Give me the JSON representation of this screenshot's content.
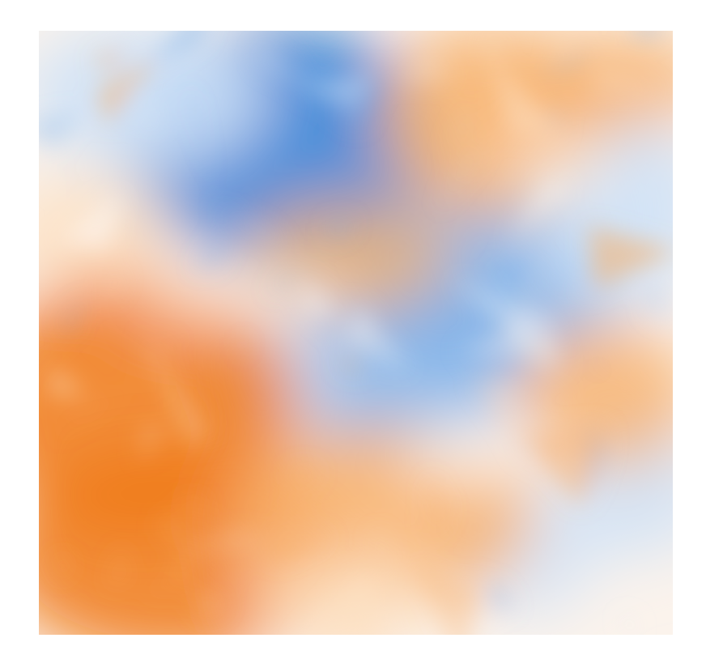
{
  "image": {
    "kind": "diverging color field, no labels",
    "colors": {
      "background": "#ffffff",
      "cool_strong": "#2f7fd6",
      "cool_mid": "#7db0ea",
      "cool_light": "#cfe2f7",
      "warm_strong": "#f07a18",
      "warm_mid": "#f8b06a",
      "warm_light": "#fde0c2",
      "neutral": "#fdfcfb"
    }
  }
}
